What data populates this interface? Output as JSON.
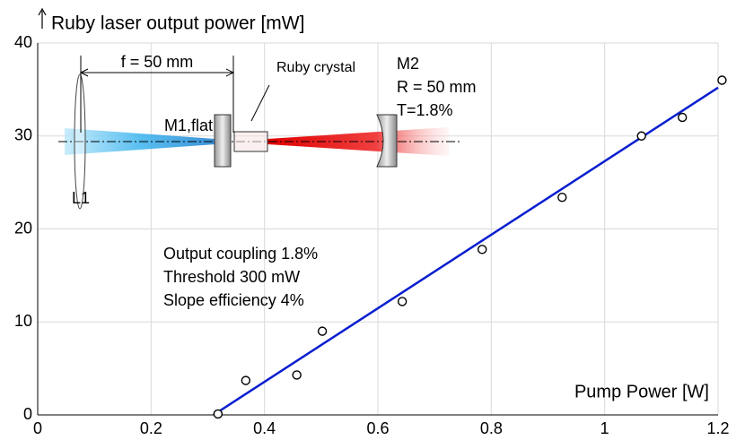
{
  "chart_data": {
    "type": "scatter",
    "title": "Ruby laser output power [mW]",
    "x_label": "Pump Power [W]",
    "annotations": [
      "Output coupling 1.8%",
      "Threshold 300 mW",
      "Slope efficiency 4%"
    ],
    "xlim": [
      0,
      1.2
    ],
    "xticks": [
      0,
      0.2,
      0.4,
      0.6,
      0.8,
      1,
      1.2
    ],
    "ylim": [
      0,
      40
    ],
    "yticks": [
      0,
      10,
      20,
      30,
      40
    ],
    "grid": true,
    "series": [
      {
        "type": "scatter",
        "color": "#000000",
        "x": [
          0.318,
          0.367,
          0.457,
          0.502,
          0.643,
          0.784,
          0.925,
          1.065,
          1.137,
          1.207
        ],
        "values": [
          0.1,
          3.7,
          4.3,
          9.0,
          12.2,
          17.8,
          23.4,
          30.0,
          32.0,
          36.0
        ]
      },
      {
        "type": "line",
        "color": "#0a1fd0",
        "x": [
          0.31,
          1.2
        ],
        "values": [
          0,
          35.2
        ]
      }
    ]
  },
  "inset": {
    "focal_length": "f = 50 mm",
    "m1": "M1,flat",
    "crystal": "Ruby crystal",
    "m2": "M2",
    "m2_radius": "R = 50 mm",
    "m2_transmission": "T=1.8%",
    "lens": "L1"
  }
}
